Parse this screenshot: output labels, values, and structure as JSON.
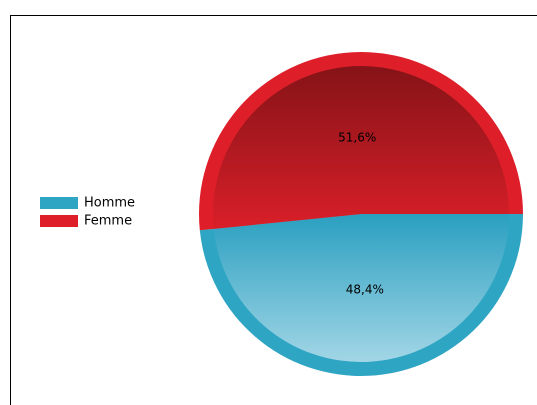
{
  "chart_data": {
    "type": "pie",
    "categories": [
      "Homme",
      "Femme"
    ],
    "values": [
      48.4,
      51.6
    ],
    "value_labels": [
      "48,4%",
      "51,6%"
    ],
    "colors": [
      "#2fa5c4",
      "#de1f2a"
    ],
    "legend": "left"
  }
}
